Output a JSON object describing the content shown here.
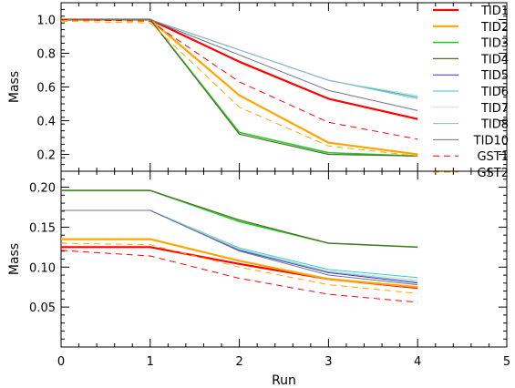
{
  "chart_data": {
    "type": "line",
    "xlabel": "Run",
    "x_ticks": [
      "0",
      "1",
      "2",
      "3",
      "4",
      "5"
    ],
    "xlim": [
      0,
      5
    ],
    "grid": false,
    "legend_position": "top-right",
    "panels": [
      {
        "ylabel": "Mass",
        "ylim": [
          0.1,
          1.1
        ],
        "y_ticks": [
          {
            "value": 0.2,
            "label": "0.2"
          },
          {
            "value": 0.4,
            "label": "0.4"
          },
          {
            "value": 0.6,
            "label": "0.6"
          },
          {
            "value": 0.8,
            "label": "0.8"
          },
          {
            "value": 1.0,
            "label": "1.0"
          }
        ],
        "x": [
          0,
          1,
          2,
          3,
          4
        ],
        "series": [
          {
            "name": "TID1",
            "color": "#ff0000",
            "dash": "solid",
            "width": 2.2,
            "values": [
              1.0,
              1.0,
              0.75,
              0.53,
              0.41
            ]
          },
          {
            "name": "TID2",
            "color": "#ffa500",
            "dash": "solid",
            "width": 2.2,
            "values": [
              1.0,
              1.0,
              0.55,
              0.27,
              0.2
            ]
          },
          {
            "name": "TID3",
            "color": "#22cc22",
            "dash": "solid",
            "width": 1.6,
            "values": [
              1.0,
              1.0,
              0.33,
              0.21,
              0.19
            ]
          },
          {
            "name": "TID4",
            "color": "#556b2f",
            "dash": "solid",
            "width": 1.2,
            "values": [
              1.0,
              1.0,
              0.32,
              0.2,
              0.19
            ]
          },
          {
            "name": "TID5",
            "color": "#3333cc",
            "dash": "solid",
            "width": 1.0,
            "values": [
              1.0,
              1.0,
              0.82,
              0.64,
              0.54
            ]
          },
          {
            "name": "TID6",
            "color": "#33cccc",
            "dash": "solid",
            "width": 1.0,
            "values": [
              1.0,
              1.0,
              0.82,
              0.64,
              0.54
            ]
          },
          {
            "name": "TID7",
            "color": "#c8e6c8",
            "dash": "solid",
            "width": 1.0,
            "values": [
              1.0,
              1.0,
              0.82,
              0.64,
              0.55
            ]
          },
          {
            "name": "TID8",
            "color": "#8fb5c8",
            "dash": "solid",
            "width": 1.0,
            "values": [
              1.0,
              1.0,
              0.82,
              0.64,
              0.53
            ]
          },
          {
            "name": "TID10",
            "color": "#707090",
            "dash": "solid",
            "width": 1.0,
            "values": [
              1.0,
              1.0,
              0.79,
              0.58,
              0.46
            ]
          },
          {
            "name": "GST1",
            "color": "#ff0000",
            "dash": "dashed",
            "width": 1.0,
            "values": [
              1.0,
              0.99,
              0.63,
              0.39,
              0.29
            ]
          },
          {
            "name": "GST2",
            "color": "#ffa500",
            "dash": "dashed",
            "width": 1.0,
            "values": [
              0.99,
              0.98,
              0.48,
              0.25,
              0.19
            ]
          }
        ]
      },
      {
        "ylabel": "Mass",
        "ylim": [
          0.0,
          0.22
        ],
        "y_ticks": [
          {
            "value": 0.05,
            "label": "0.05"
          },
          {
            "value": 0.1,
            "label": "0.10"
          },
          {
            "value": 0.15,
            "label": "0.15"
          },
          {
            "value": 0.2,
            "label": "0.20"
          }
        ],
        "x": [
          0,
          1,
          2,
          3,
          4
        ],
        "series": [
          {
            "name": "TID1",
            "color": "#ff0000",
            "dash": "solid",
            "width": 2.2,
            "values": [
              0.125,
              0.125,
              0.104,
              0.085,
              0.074
            ]
          },
          {
            "name": "TID2",
            "color": "#ffa500",
            "dash": "solid",
            "width": 2.2,
            "values": [
              0.135,
              0.135,
              0.108,
              0.085,
              0.075
            ]
          },
          {
            "name": "TID3",
            "color": "#22cc22",
            "dash": "solid",
            "width": 1.6,
            "values": [
              0.196,
              0.196,
              0.157,
              0.13,
              0.125
            ]
          },
          {
            "name": "TID4",
            "color": "#556b2f",
            "dash": "solid",
            "width": 1.2,
            "values": [
              0.196,
              0.196,
              0.159,
              0.13,
              0.125
            ]
          },
          {
            "name": "TID5",
            "color": "#3333cc",
            "dash": "solid",
            "width": 1.0,
            "values": [
              0.171,
              0.171,
              0.121,
              0.093,
              0.08
            ]
          },
          {
            "name": "TID6",
            "color": "#33cccc",
            "dash": "solid",
            "width": 1.0,
            "values": [
              0.171,
              0.171,
              0.124,
              0.097,
              0.087
            ]
          },
          {
            "name": "TID7",
            "color": "#c8e6c8",
            "dash": "solid",
            "width": 1.0,
            "values": [
              0.171,
              0.171,
              0.123,
              0.095,
              0.084
            ]
          },
          {
            "name": "TID8",
            "color": "#8fb5c8",
            "dash": "solid",
            "width": 1.0,
            "values": [
              0.171,
              0.171,
              0.122,
              0.094,
              0.082
            ]
          },
          {
            "name": "TID10",
            "color": "#707090",
            "dash": "solid",
            "width": 1.0,
            "values": [
              0.171,
              0.171,
              0.12,
              0.09,
              0.078
            ]
          },
          {
            "name": "GST1",
            "color": "#ff0000",
            "dash": "dashed",
            "width": 1.0,
            "values": [
              0.121,
              0.114,
              0.086,
              0.066,
              0.056
            ]
          },
          {
            "name": "GST2",
            "color": "#ffa500",
            "dash": "dashed",
            "width": 1.0,
            "values": [
              0.13,
              0.128,
              0.1,
              0.078,
              0.067
            ]
          }
        ]
      }
    ]
  }
}
